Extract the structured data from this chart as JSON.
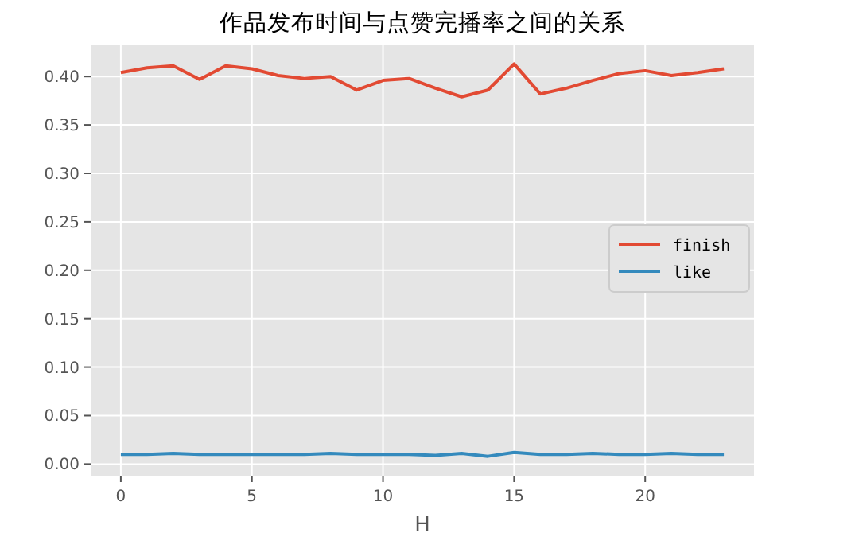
{
  "chart_data": {
    "type": "line",
    "title": "作品发布时间与点赞完播率之间的关系",
    "xlabel": "H",
    "x": [
      0,
      1,
      2,
      3,
      4,
      5,
      6,
      7,
      8,
      9,
      10,
      11,
      12,
      13,
      14,
      15,
      16,
      17,
      18,
      19,
      20,
      21,
      22,
      23
    ],
    "series": [
      {
        "name": "finish",
        "color": "#e24a33",
        "values": [
          0.404,
          0.409,
          0.411,
          0.397,
          0.411,
          0.408,
          0.401,
          0.398,
          0.4,
          0.386,
          0.396,
          0.398,
          0.388,
          0.379,
          0.386,
          0.413,
          0.382,
          0.388,
          0.396,
          0.403,
          0.406,
          0.401,
          0.404,
          0.408
        ]
      },
      {
        "name": "like",
        "color": "#348abd",
        "values": [
          0.01,
          0.01,
          0.011,
          0.01,
          0.01,
          0.01,
          0.01,
          0.01,
          0.011,
          0.01,
          0.01,
          0.01,
          0.009,
          0.011,
          0.008,
          0.012,
          0.01,
          0.01,
          0.011,
          0.01,
          0.01,
          0.011,
          0.01,
          0.01
        ]
      }
    ],
    "xlim": [
      -1.15,
      24.15
    ],
    "ylim": [
      -0.012,
      0.433
    ],
    "xticks": [
      0,
      5,
      10,
      15,
      20
    ],
    "yticks": [
      {
        "value": 0,
        "label": "0.00"
      },
      {
        "value": 0.05,
        "label": "0.05"
      },
      {
        "value": 0.1,
        "label": "0.10"
      },
      {
        "value": 0.15,
        "label": "0.15"
      },
      {
        "value": 0.2,
        "label": "0.20"
      },
      {
        "value": 0.25,
        "label": "0.25"
      },
      {
        "value": 0.3,
        "label": "0.30"
      },
      {
        "value": 0.35,
        "label": "0.35"
      },
      {
        "value": 0.4,
        "label": "0.40"
      }
    ],
    "grid": true,
    "legend": "right",
    "marker": "none",
    "line_style": "solid"
  }
}
